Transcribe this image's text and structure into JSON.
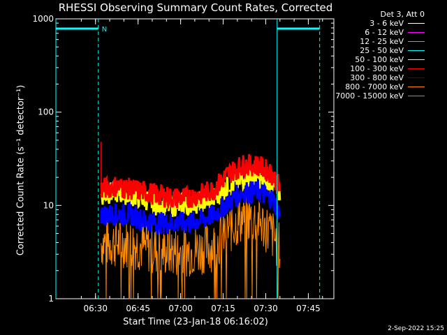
{
  "chart_data": {
    "type": "line",
    "title": "RHESSI Observing Summary Count Rates, Corrected",
    "xlabel": "Start Time (23-Jan-18 06:16:02)",
    "ylabel": "Corrected Count Rate (s⁻¹ detector⁻¹)",
    "y_scale": "log",
    "ylim": [
      1,
      1000
    ],
    "xlim": [
      "06:16:02",
      "07:54:00"
    ],
    "x_ticks": [
      "06:30",
      "06:45",
      "07:00",
      "07:15",
      "07:30",
      "07:45"
    ],
    "y_ticks": [
      "1",
      "10",
      "100",
      "1000"
    ],
    "legend_header": "Det 3, Att 0",
    "legend_position": "top-right",
    "series": [
      {
        "name": "3 - 6 keV",
        "color": "#ffffff",
        "values": []
      },
      {
        "name": "6 - 12 keV",
        "color": "#ff00ff",
        "values": []
      },
      {
        "name": "12 - 25 keV",
        "color": "#00ff00",
        "values": []
      },
      {
        "name": "25 - 50 keV",
        "color": "#00ffff",
        "values": []
      },
      {
        "name": "50 - 100 keV",
        "color": "#ffff00",
        "values": [
          [
            "06:32",
            13
          ],
          [
            "06:37",
            14
          ],
          [
            "06:42",
            13
          ],
          [
            "06:47",
            12
          ],
          [
            "06:52",
            10
          ],
          [
            "06:57",
            10
          ],
          [
            "07:02",
            10
          ],
          [
            "07:07",
            11
          ],
          [
            "07:12",
            12
          ],
          [
            "07:17",
            16
          ],
          [
            "07:22",
            19
          ],
          [
            "07:27",
            20
          ],
          [
            "07:32",
            17
          ],
          [
            "07:35",
            13
          ]
        ]
      },
      {
        "name": "100 - 300 keV",
        "color": "#ff0000",
        "values": [
          [
            "06:32",
            15
          ],
          [
            "06:37",
            16
          ],
          [
            "06:42",
            15
          ],
          [
            "06:47",
            14
          ],
          [
            "06:52",
            13
          ],
          [
            "06:57",
            12
          ],
          [
            "07:02",
            12
          ],
          [
            "07:07",
            13
          ],
          [
            "07:12",
            15
          ],
          [
            "07:17",
            22
          ],
          [
            "07:22",
            27
          ],
          [
            "07:27",
            27
          ],
          [
            "07:32",
            22
          ],
          [
            "07:35",
            15
          ]
        ]
      },
      {
        "name": "300 - 800 keV",
        "color": "#0000ff",
        "values": [
          [
            "06:32",
            8
          ],
          [
            "06:37",
            8
          ],
          [
            "06:42",
            8
          ],
          [
            "06:47",
            7
          ],
          [
            "06:52",
            6.5
          ],
          [
            "06:57",
            6.5
          ],
          [
            "07:02",
            6.5
          ],
          [
            "07:07",
            7
          ],
          [
            "07:12",
            8
          ],
          [
            "07:17",
            11
          ],
          [
            "07:22",
            14
          ],
          [
            "07:27",
            14
          ],
          [
            "07:32",
            12
          ],
          [
            "07:35",
            8
          ]
        ]
      },
      {
        "name": "800 - 7000 keV",
        "color": "#ff8c00",
        "values": [
          [
            "06:32",
            4
          ],
          [
            "06:37",
            4
          ],
          [
            "06:42",
            4
          ],
          [
            "06:47",
            3.6
          ],
          [
            "06:52",
            3.3
          ],
          [
            "06:57",
            3.2
          ],
          [
            "07:02",
            3.2
          ],
          [
            "07:07",
            3.4
          ],
          [
            "07:12",
            3.7
          ],
          [
            "07:17",
            5.5
          ],
          [
            "07:22",
            7.5
          ],
          [
            "07:27",
            7
          ],
          [
            "07:32",
            5
          ],
          [
            "07:35",
            3.5
          ]
        ]
      },
      {
        "name": "7000 - 15000 keV",
        "color": "#a0a000",
        "values": []
      }
    ],
    "annotations": [
      {
        "text": "N",
        "color": "#00ffff"
      }
    ],
    "period_markers": {
      "color": "#00ffff",
      "solid_vertical": [
        "06:16:02",
        "07:34"
      ],
      "dashed_vertical": [
        "06:31",
        "07:49"
      ],
      "bars": [
        [
          "06:16:02",
          "06:31"
        ],
        [
          "07:34",
          "07:49"
        ]
      ]
    }
  },
  "footer": {
    "timestamp": "2-Sep-2022 15:25"
  }
}
